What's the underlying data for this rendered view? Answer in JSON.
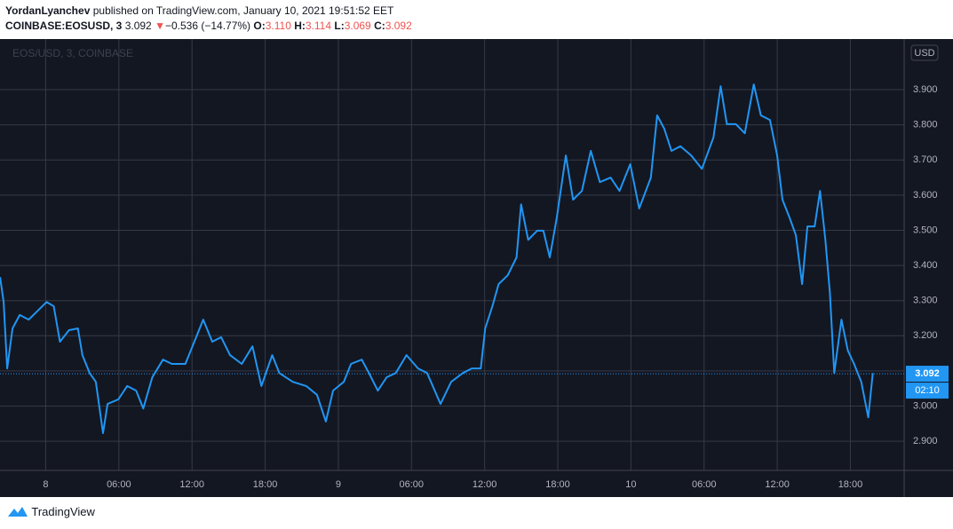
{
  "header": {
    "author": "YordanLyanchev",
    "published": "published on TradingView.com, January 10, 2021 19:51:52 EET",
    "symbol": "COINBASE:EOSUSD, 3",
    "price": "3.092",
    "arrow": "▼",
    "change": "−0.536 (−14.77%)",
    "ohlc": [
      {
        "label": "O:",
        "value": "3.110"
      },
      {
        "label": "H:",
        "value": "3.114"
      },
      {
        "label": "L:",
        "value": "3.069"
      },
      {
        "label": "C:",
        "value": "3.092"
      }
    ]
  },
  "footer": {
    "brand": "TradingView"
  },
  "chart_data": {
    "type": "line",
    "watermark": "EOS/USD, 3, COINBASE",
    "currency": "USD",
    "color": "#2196f3",
    "grid": true,
    "x": [
      -3.74,
      -3.45,
      -3.16,
      -2.72,
      -2.13,
      -1.4,
      -0.66,
      0.07,
      0.66,
      1.17,
      1.91,
      2.64,
      3.01,
      3.6,
      4.11,
      4.7,
      5.07,
      5.95,
      6.68,
      7.42,
      8.0,
      8.74,
      9.62,
      10.35,
      11.45,
      12.19,
      12.92,
      13.66,
      14.39,
      15.12,
      16.08,
      16.96,
      17.69,
      18.58,
      19.16,
      20.26,
      21.37,
      22.25,
      22.98,
      23.57,
      24.45,
      25.04,
      25.92,
      26.51,
      27.24,
      27.97,
      28.71,
      29.59,
      30.54,
      31.28,
      32.38,
      33.26,
      34.21,
      34.95,
      35.68,
      36.05,
      36.64,
      37.15,
      37.89,
      38.62,
      38.99,
      39.57,
      40.31,
      40.82,
      41.34,
      41.92,
      42.66,
      43.25,
      43.98,
      44.71,
      45.45,
      46.33,
      47.06,
      47.94,
      48.68,
      49.63,
      50.15,
      50.73,
      51.32,
      52.06,
      52.94,
      53.82,
      54.77,
      55.36,
      55.87,
      56.61,
      57.34,
      58.08,
      58.66,
      59.4,
      59.99,
      60.43,
      61.01,
      61.53,
      62.04,
      62.48,
      63.07,
      63.51,
      63.95,
      64.32,
      64.68,
      65.27,
      65.79,
      66.3,
      66.89,
      67.47,
      67.84
    ],
    "values": [
      3.367,
      3.296,
      3.107,
      3.221,
      3.259,
      3.246,
      3.271,
      3.296,
      3.284,
      3.183,
      3.216,
      3.221,
      3.145,
      3.094,
      3.069,
      2.923,
      3.006,
      3.019,
      3.057,
      3.044,
      2.993,
      3.082,
      3.132,
      3.12,
      3.12,
      3.183,
      3.246,
      3.183,
      3.196,
      3.145,
      3.12,
      3.17,
      3.057,
      3.145,
      3.094,
      3.069,
      3.057,
      3.032,
      2.956,
      3.044,
      3.069,
      3.12,
      3.132,
      3.094,
      3.044,
      3.082,
      3.094,
      3.145,
      3.107,
      3.094,
      3.006,
      3.069,
      3.094,
      3.107,
      3.107,
      3.221,
      3.284,
      3.347,
      3.372,
      3.423,
      3.574,
      3.473,
      3.499,
      3.499,
      3.423,
      3.536,
      3.713,
      3.587,
      3.612,
      3.726,
      3.637,
      3.65,
      3.612,
      3.688,
      3.562,
      3.65,
      3.827,
      3.789,
      3.726,
      3.739,
      3.713,
      3.675,
      3.764,
      3.91,
      3.802,
      3.802,
      3.776,
      3.915,
      3.827,
      3.814,
      3.713,
      3.587,
      3.536,
      3.486,
      3.347,
      3.511,
      3.511,
      3.612,
      3.473,
      3.322,
      3.094,
      3.246,
      3.158,
      3.12,
      3.069,
      2.968,
      3.094
    ],
    "last_value": 3.092,
    "countdown": "02:10",
    "xlim": [
      -3.75,
      70.41
    ],
    "xticks": [
      {
        "value": 0,
        "label": "8"
      },
      {
        "value": 6,
        "label": "06:00"
      },
      {
        "value": 12,
        "label": "12:00"
      },
      {
        "value": 18,
        "label": "18:00"
      },
      {
        "value": 24,
        "label": "9"
      },
      {
        "value": 30,
        "label": "06:00"
      },
      {
        "value": 36,
        "label": "12:00"
      },
      {
        "value": 42,
        "label": "18:00"
      },
      {
        "value": 48,
        "label": "10"
      },
      {
        "value": 54,
        "label": "06:00"
      },
      {
        "value": 60,
        "label": "12:00"
      },
      {
        "value": 66,
        "label": "18:00"
      }
    ],
    "ylim": [
      2.817,
      4.044
    ],
    "yticks": [
      {
        "value": 2.9,
        "label": "2.900"
      },
      {
        "value": 3.0,
        "label": "3.000"
      },
      {
        "value": 3.1,
        "label": "3.100"
      },
      {
        "value": 3.2,
        "label": "3.200"
      },
      {
        "value": 3.3,
        "label": "3.300"
      },
      {
        "value": 3.4,
        "label": "3.400"
      },
      {
        "value": 3.5,
        "label": "3.500"
      },
      {
        "value": 3.6,
        "label": "3.600"
      },
      {
        "value": 3.7,
        "label": "3.700"
      },
      {
        "value": 3.8,
        "label": "3.800"
      },
      {
        "value": 3.9,
        "label": "3.900"
      }
    ]
  }
}
